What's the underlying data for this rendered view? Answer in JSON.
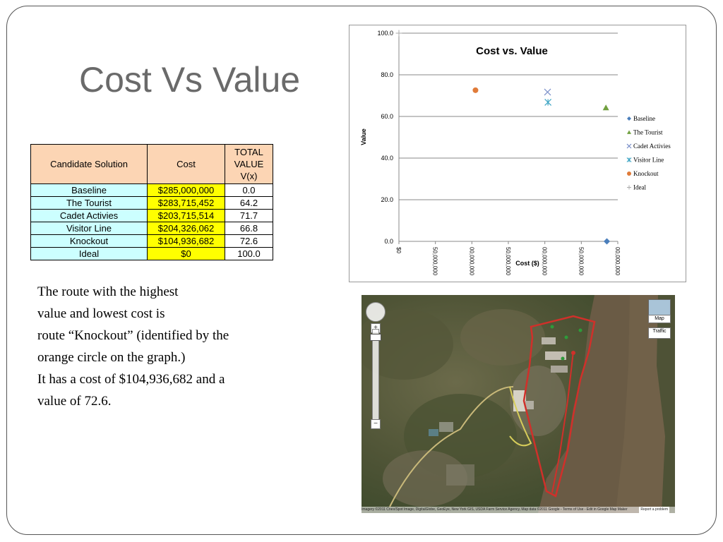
{
  "slide": {
    "title": "Cost Vs Value"
  },
  "table": {
    "headers": [
      "Candidate Solution",
      "Cost",
      "TOTAL VALUE V(x)"
    ],
    "rows": [
      {
        "name": "Baseline",
        "cost": "$285,000,000",
        "value": "0.0"
      },
      {
        "name": "The Tourist",
        "cost": "$283,715,452",
        "value": "64.2"
      },
      {
        "name": "Cadet Activies",
        "cost": "$203,715,514",
        "value": "71.7"
      },
      {
        "name": "Visitor Line",
        "cost": "$204,326,062",
        "value": "66.8"
      },
      {
        "name": "Knockout",
        "cost": "$104,936,682",
        "value": "72.6"
      },
      {
        "name": "Ideal",
        "cost": "$0",
        "value": "100.0"
      }
    ]
  },
  "body_text": {
    "line1": "The route with the highest",
    "line2": "value and lowest cost is",
    "line3": "route “Knockout” (identified by the",
    "line4": "orange circle on the graph.)",
    "line5": "It has a cost of $104,936,682 and a",
    "line6": "value of 72.6."
  },
  "chart_data": {
    "type": "scatter",
    "title": "Cost vs. Value",
    "xlabel": "Cost ($)",
    "ylabel": "Value",
    "ylim": [
      0,
      100
    ],
    "xlim": [
      0,
      300000000
    ],
    "y_ticks": [
      "0.0",
      "20.0",
      "40.0",
      "60.0",
      "80.0",
      "100.0"
    ],
    "x_ticks": [
      "$0",
      "50,000,000",
      "00,000,000",
      "50,000,000",
      "00,000,000",
      "50,000,000",
      "00,000,000"
    ],
    "grid": true,
    "legend_position": "right",
    "series": [
      {
        "name": "Baseline",
        "marker": "diamond",
        "color": "#4a7ebb",
        "x": 285000000,
        "y": 0.0
      },
      {
        "name": "The Tourist",
        "marker": "triangle",
        "color": "#71a040",
        "x": 283715452,
        "y": 64.2
      },
      {
        "name": "Cadet Activies",
        "marker": "x",
        "color": "#7a8fc9",
        "x": 203715514,
        "y": 71.7
      },
      {
        "name": "Visitor Line",
        "marker": "star",
        "color": "#3ea5c4",
        "x": 204326062,
        "y": 66.8
      },
      {
        "name": "Knockout",
        "marker": "circle",
        "color": "#e07b39",
        "x": 104936682,
        "y": 72.6
      },
      {
        "name": "Ideal",
        "marker": "plus",
        "color": "#aaaaaa",
        "x": 0,
        "y": 100.0
      }
    ]
  },
  "map": {
    "map_button": "Map",
    "traffic_button": "Traffic",
    "zoom_in": "+",
    "zoom_out": "−",
    "attribution": "Imagery ©2011 Cnes/Spot Image, DigitalGlobe, GeoEye, New York GIS, USDA Farm Service Agency, Map data ©2011 Google - Terms of Use - Edit in Google Map Maker",
    "report": "Report a problem"
  },
  "colors": {
    "title": "#6a6a6a",
    "table_header": "#fcd5b4",
    "table_name": "#ccffff",
    "table_cost": "#ffff00",
    "route": "#d0302a",
    "river": "#6a5b45"
  }
}
